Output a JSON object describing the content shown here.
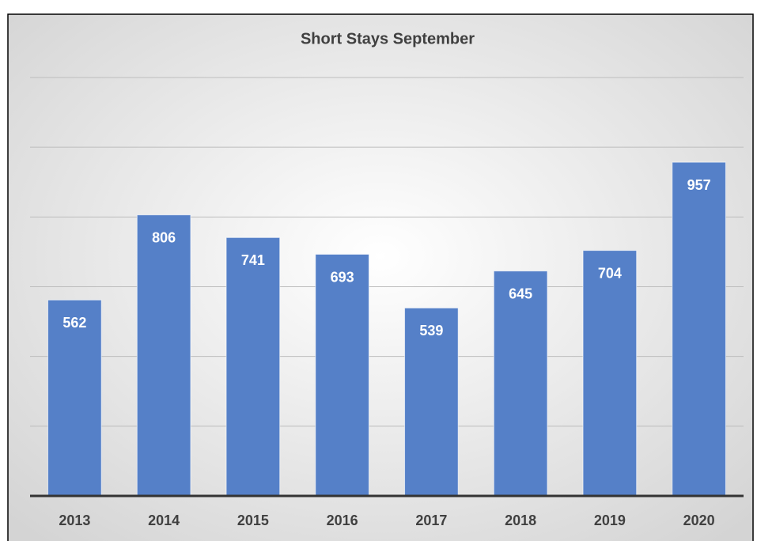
{
  "chart_data": {
    "type": "bar",
    "title": "Short Stays September",
    "categories": [
      "2013",
      "2014",
      "2015",
      "2016",
      "2017",
      "2018",
      "2019",
      "2020"
    ],
    "values": [
      562,
      806,
      741,
      693,
      539,
      645,
      704,
      957
    ],
    "color": "#5580c8",
    "ylim": [
      0,
      1200
    ],
    "yticks": [
      0,
      200,
      400,
      600,
      800,
      1000,
      1200
    ],
    "grid": true
  }
}
